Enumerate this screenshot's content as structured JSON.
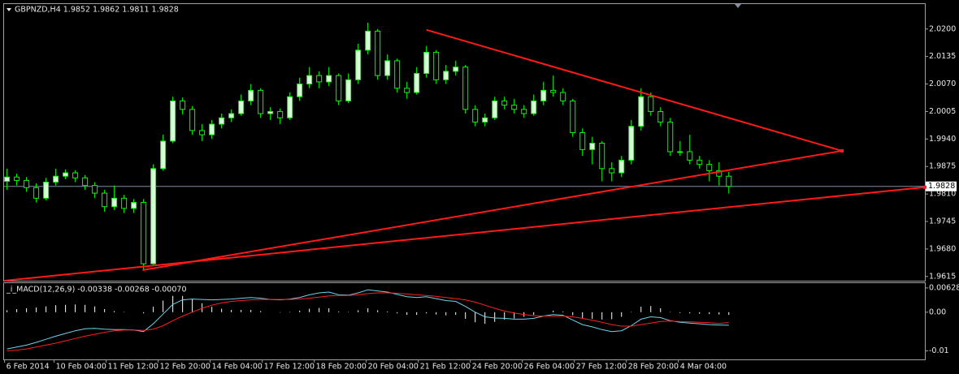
{
  "chart_data": [
    {
      "type": "candlestick",
      "title": "GBPNZD,H4  1.9852 1.9862 1.9811 1.9828",
      "up_color": "#d6ffd6",
      "down_color": "#000000",
      "wick_color": "#00ff00",
      "open": [
        1.984,
        1.985,
        1.9842,
        1.9825,
        1.98,
        1.9838,
        1.9852,
        1.986,
        1.9848,
        1.983,
        1.9812,
        1.978,
        1.98,
        1.9776,
        1.979,
        1.9645,
        1.987,
        1.9935,
        2.003,
        2.001,
        1.996,
        1.995,
        1.9975,
        1.999,
        2.0,
        2.003,
        2.0055,
        2.0,
        2.0005,
        1.999,
        2.004,
        2.007,
        2.009,
        2.0075,
        2.009,
        2.003,
        2.008,
        2.015,
        2.0195,
        2.009,
        2.0125,
        2.006,
        2.005,
        2.0095,
        2.0145,
        2.008,
        2.01,
        2.011,
        2.001,
        1.998,
        1.999,
        2.003,
        2.002,
        2.001,
        2.0,
        2.003,
        2.0055,
        2.005,
        2.003,
        1.9955,
        1.9915,
        1.993,
        1.987,
        1.986,
        1.989,
        1.997,
        2.004,
        2.0005,
        1.998,
        1.991,
        1.991,
        1.989,
        1.988,
        1.9865,
        1.9852
      ],
      "high": [
        1.987,
        1.9858,
        1.985,
        1.9835,
        1.9848,
        1.987,
        1.9868,
        1.9866,
        1.9855,
        1.9838,
        1.982,
        1.983,
        1.9808,
        1.9798,
        1.9798,
        1.988,
        1.995,
        2.004,
        2.0038,
        2.0018,
        1.9975,
        1.9985,
        2.0,
        2.001,
        2.0045,
        2.007,
        2.006,
        2.0015,
        2.0012,
        2.005,
        2.0085,
        2.011,
        2.01,
        2.011,
        2.0095,
        2.0095,
        2.0165,
        2.0215,
        2.02,
        2.014,
        2.013,
        2.0075,
        2.011,
        2.016,
        2.015,
        2.0115,
        2.0125,
        2.0115,
        2.002,
        2.0,
        2.004,
        2.004,
        2.0035,
        2.002,
        2.0045,
        2.0075,
        2.009,
        2.006,
        2.0035,
        1.9965,
        1.9945,
        1.9935,
        1.9885,
        1.99,
        1.9985,
        2.006,
        2.005,
        2.0015,
        1.999,
        1.9935,
        1.995,
        1.99,
        1.989,
        1.9885,
        1.9862
      ],
      "low": [
        1.982,
        1.983,
        1.9815,
        1.979,
        1.9795,
        1.983,
        1.9845,
        1.9838,
        1.982,
        1.98,
        1.9768,
        1.9772,
        1.9765,
        1.9765,
        1.963,
        1.964,
        1.9865,
        1.993,
        1.9998,
        1.995,
        1.9935,
        1.994,
        1.9965,
        1.998,
        1.9995,
        2.002,
        1.999,
        1.9985,
        1.9975,
        1.9985,
        2.003,
        2.006,
        2.006,
        2.0065,
        2.002,
        2.0025,
        2.007,
        2.014,
        2.008,
        2.008,
        2.005,
        2.0035,
        2.0045,
        2.0085,
        2.007,
        2.007,
        2.009,
        2.0,
        1.997,
        1.997,
        1.9985,
        2.001,
        2.0,
        1.999,
        1.9995,
        2.002,
        2.004,
        2.002,
        1.9945,
        1.99,
        1.988,
        1.984,
        1.984,
        1.985,
        1.988,
        1.996,
        1.9995,
        1.997,
        1.99,
        1.99,
        1.988,
        1.987,
        1.984,
        1.983,
        1.9811
      ],
      "close": [
        1.985,
        1.9842,
        1.9825,
        1.98,
        1.9838,
        1.9852,
        1.986,
        1.9848,
        1.983,
        1.9812,
        1.978,
        1.98,
        1.9776,
        1.979,
        1.9645,
        1.987,
        1.9935,
        2.003,
        2.001,
        1.996,
        1.995,
        1.9975,
        1.999,
        2.0,
        2.003,
        2.0055,
        2.0,
        2.0005,
        1.999,
        2.004,
        2.007,
        2.009,
        2.0075,
        2.009,
        2.003,
        2.008,
        2.015,
        2.0195,
        2.009,
        2.0125,
        2.006,
        2.005,
        2.0095,
        2.0145,
        2.008,
        2.01,
        2.011,
        2.001,
        1.998,
        1.999,
        2.003,
        2.002,
        2.001,
        2.0,
        2.003,
        2.0055,
        2.005,
        2.003,
        1.9955,
        1.9915,
        1.993,
        1.987,
        1.986,
        1.989,
        1.997,
        2.004,
        2.0005,
        1.998,
        1.991,
        1.991,
        1.989,
        1.988,
        1.9865,
        1.9852,
        1.9828
      ],
      "xlim": [
        -0.3,
        94.1
      ],
      "xticks": [
        {
          "value": -0.25,
          "label": "6 Feb 2014"
        },
        {
          "value": 4.83,
          "label": "10 Feb 04:00"
        },
        {
          "value": 10.17,
          "label": "11 Feb 12:00"
        },
        {
          "value": 15.5,
          "label": "12 Feb 20:00"
        },
        {
          "value": 20.83,
          "label": "14 Feb 04:00"
        },
        {
          "value": 26.17,
          "label": "17 Feb 12:00"
        },
        {
          "value": 31.5,
          "label": "18 Feb 20:00"
        },
        {
          "value": 36.83,
          "label": "20 Feb 04:00"
        },
        {
          "value": 42.17,
          "label": "21 Feb 12:00"
        },
        {
          "value": 47.5,
          "label": "24 Feb 20:00"
        },
        {
          "value": 52.83,
          "label": "26 Feb 04:00"
        },
        {
          "value": 58.17,
          "label": "27 Feb 12:00"
        },
        {
          "value": 63.5,
          "label": "28 Feb 20:00"
        },
        {
          "value": 68.83,
          "label": "4 Mar 04:00"
        }
      ],
      "ylim": [
        1.9605,
        2.0259
      ],
      "yticks": [
        {
          "value": 2.02,
          "label": "2.0200"
        },
        2.0135,
        {
          "value": 2.007,
          "label": "2.0070"
        },
        2.0005,
        {
          "value": 1.994,
          "label": "1.9940"
        },
        1.9875,
        {
          "value": 1.981,
          "label": "1.9810"
        },
        1.9745,
        {
          "value": 1.968,
          "label": "1.9680"
        },
        1.9615
      ],
      "bid": 1.9828,
      "bid_color": "#7f8ca0",
      "trendline_color": "#ff1a1a",
      "trendlines": [
        {
          "x": [
            43,
            85.6
          ],
          "y": [
            2.0198,
            1.9912
          ]
        },
        {
          "x": [
            13.9,
            85.6
          ],
          "y": [
            1.963,
            1.9912
          ]
        },
        {
          "x": [
            -0.25,
            94.1
          ],
          "y": [
            1.9605,
            1.9826
          ]
        }
      ]
    },
    {
      "type": "macd",
      "title": "_i_MACD(12,26,9) -0.00338 -0.00268 -0.00070",
      "ylim": [
        -0.0122,
        0.0073
      ],
      "yticks": [
        0.00628,
        {
          "value": 0,
          "label": "0.00"
        },
        -0.01
      ],
      "series": [
        {
          "name": "histogram",
          "color": "#ffffff",
          "values": [
            0.0005,
            0.0008,
            0.001,
            0.0012,
            0.0015,
            0.0018,
            0.0019,
            0.002,
            0.0019,
            0.0015,
            0.0008,
            0.0003,
            0.0001,
            0.0,
            -0.0003,
            0.0014,
            0.003,
            0.0042,
            0.0042,
            0.0034,
            0.0023,
            0.0014,
            0.0009,
            0.0006,
            0.0006,
            0.0006,
            0.0003,
            0.0,
            -0.0001,
            0.0001,
            0.0004,
            0.0009,
            0.0011,
            0.001,
            0.0002,
            0.0001,
            0.0005,
            0.001,
            0.0005,
            0.0002,
            -0.0003,
            -0.0007,
            -0.0007,
            -0.0003,
            -0.0006,
            -0.0008,
            -0.0007,
            -0.0017,
            -0.0026,
            -0.003,
            -0.0025,
            -0.0019,
            -0.0016,
            -0.0012,
            -0.0007,
            0.0,
            0.0004,
            0.0002,
            -0.0008,
            -0.0016,
            -0.0017,
            -0.0019,
            -0.0018,
            -0.0012,
            0.0001,
            0.0014,
            0.0016,
            0.001,
            0.0001,
            -0.0002,
            -0.0003,
            -0.0004,
            -0.0005,
            -0.0006,
            -0.0007
          ]
        },
        {
          "name": "main",
          "color": "#6fd3ea",
          "values": [
            -0.0095,
            -0.009,
            -0.0085,
            -0.0078,
            -0.007,
            -0.0062,
            -0.0055,
            -0.0048,
            -0.0043,
            -0.0042,
            -0.0044,
            -0.0045,
            -0.0045,
            -0.0046,
            -0.005,
            -0.003,
            -0.0005,
            0.002,
            0.0032,
            0.0034,
            0.0033,
            0.0032,
            0.0033,
            0.0034,
            0.0036,
            0.0038,
            0.0036,
            0.0033,
            0.0032,
            0.0034,
            0.0038,
            0.0045,
            0.005,
            0.0052,
            0.0045,
            0.0044,
            0.005,
            0.0058,
            0.0055,
            0.0052,
            0.0046,
            0.004,
            0.0038,
            0.004,
            0.0035,
            0.003,
            0.0028,
            0.0015,
            0.0,
            -0.0012,
            -0.0015,
            -0.0016,
            -0.0018,
            -0.0018,
            -0.0016,
            -0.001,
            -0.0006,
            -0.0008,
            -0.002,
            -0.0032,
            -0.0038,
            -0.0045,
            -0.005,
            -0.0048,
            -0.0035,
            -0.0018,
            -0.0012,
            -0.0014,
            -0.0022,
            -0.0026,
            -0.0028,
            -0.003,
            -0.0032,
            -0.0033,
            -0.00338
          ]
        },
        {
          "name": "signal",
          "color": "#ff2020",
          "values": [
            -0.01,
            -0.0098,
            -0.0095,
            -0.009,
            -0.0085,
            -0.008,
            -0.0074,
            -0.0068,
            -0.0062,
            -0.0057,
            -0.0052,
            -0.0048,
            -0.0046,
            -0.0046,
            -0.0047,
            -0.0044,
            -0.0035,
            -0.0022,
            -0.001,
            0.0,
            0.001,
            0.0018,
            0.0024,
            0.0028,
            0.003,
            0.0032,
            0.0033,
            0.0033,
            0.0033,
            0.0033,
            0.0034,
            0.0036,
            0.0039,
            0.0042,
            0.0043,
            0.0043,
            0.0045,
            0.0048,
            0.005,
            0.005,
            0.0049,
            0.0047,
            0.0045,
            0.0043,
            0.0041,
            0.0038,
            0.0035,
            0.0032,
            0.0026,
            0.0018,
            0.001,
            0.0003,
            -0.0002,
            -0.0006,
            -0.0009,
            -0.001,
            -0.001,
            -0.001,
            -0.0012,
            -0.0016,
            -0.0021,
            -0.0026,
            -0.0032,
            -0.0036,
            -0.0036,
            -0.0032,
            -0.0028,
            -0.0024,
            -0.0023,
            -0.0024,
            -0.0025,
            -0.0026,
            -0.0027,
            -0.0029,
            -0.00268
          ]
        }
      ]
    }
  ]
}
